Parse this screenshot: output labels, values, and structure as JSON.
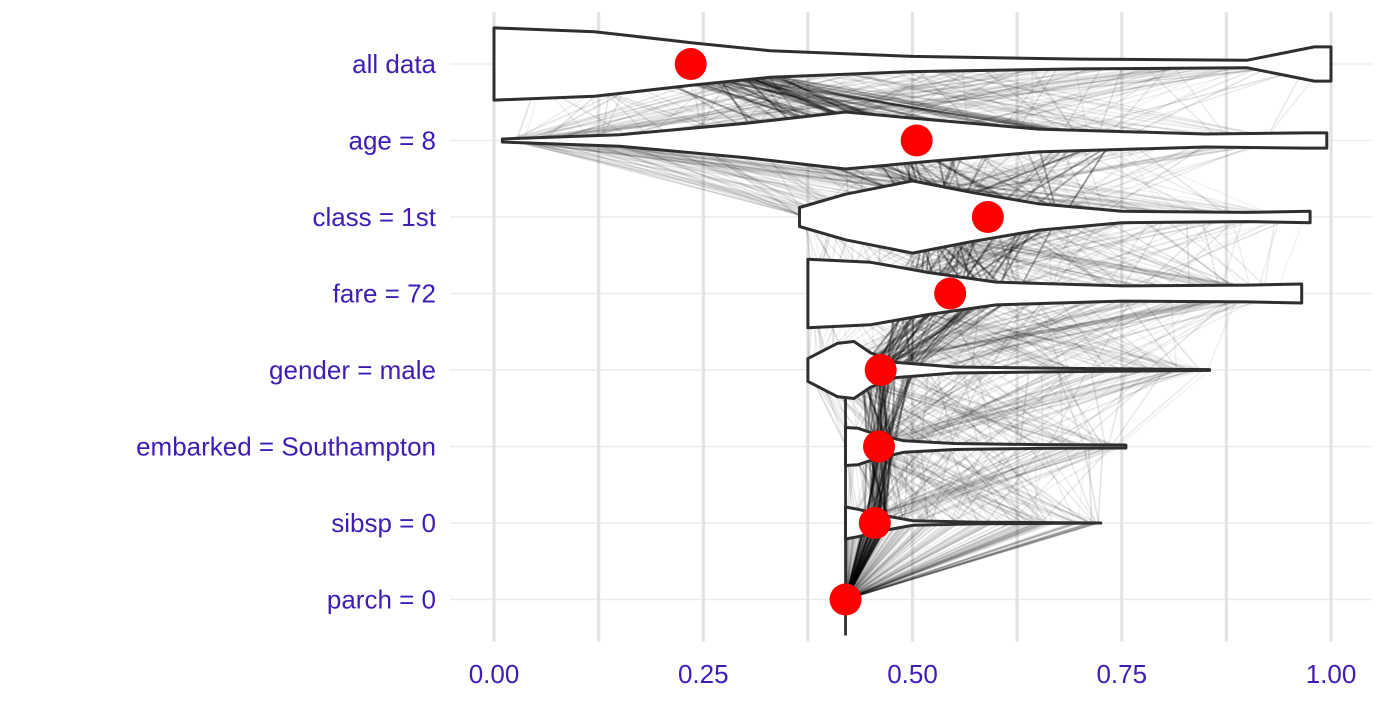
{
  "chart_data": {
    "type": "violin",
    "xlim": [
      0,
      1
    ],
    "x_ticks": [
      0,
      0.25,
      0.5,
      0.75,
      1
    ],
    "x_tick_labels": [
      "0.00",
      "0.25",
      "0.50",
      "0.75",
      "1.00"
    ],
    "grid": true,
    "label_color": "#3f1db5",
    "point_color": "#ff0000",
    "baseline": 0.42,
    "rows": [
      {
        "label": "all data",
        "mean": 0.235,
        "min": 0.0,
        "max": 1.0,
        "profile": [
          [
            0.0,
            0.95
          ],
          [
            0.12,
            0.85
          ],
          [
            0.24,
            0.55
          ],
          [
            0.33,
            0.35
          ],
          [
            0.5,
            0.2
          ],
          [
            0.7,
            0.13
          ],
          [
            0.9,
            0.1
          ],
          [
            0.98,
            0.45
          ],
          [
            1.0,
            0.45
          ]
        ]
      },
      {
        "label": "age = 8",
        "mean": 0.505,
        "min": 0.01,
        "max": 0.995,
        "profile": [
          [
            0.01,
            0.04
          ],
          [
            0.15,
            0.15
          ],
          [
            0.3,
            0.45
          ],
          [
            0.42,
            0.75
          ],
          [
            0.52,
            0.55
          ],
          [
            0.65,
            0.3
          ],
          [
            0.85,
            0.17
          ],
          [
            0.97,
            0.2
          ],
          [
            0.995,
            0.2
          ]
        ]
      },
      {
        "label": "class = 1st",
        "mean": 0.59,
        "min": 0.365,
        "max": 0.975,
        "profile": [
          [
            0.365,
            0.25
          ],
          [
            0.42,
            0.6
          ],
          [
            0.5,
            0.95
          ],
          [
            0.57,
            0.65
          ],
          [
            0.65,
            0.35
          ],
          [
            0.75,
            0.15
          ],
          [
            0.9,
            0.12
          ],
          [
            0.975,
            0.15
          ]
        ]
      },
      {
        "label": "fare = 72",
        "mean": 0.545,
        "min": 0.375,
        "max": 0.965,
        "profile": [
          [
            0.375,
            0.9
          ],
          [
            0.45,
            0.82
          ],
          [
            0.52,
            0.55
          ],
          [
            0.6,
            0.3
          ],
          [
            0.75,
            0.2
          ],
          [
            0.9,
            0.22
          ],
          [
            0.965,
            0.25
          ]
        ]
      },
      {
        "label": "gender = male",
        "mean": 0.462,
        "min": 0.375,
        "max": 0.855,
        "profile": [
          [
            0.375,
            0.3
          ],
          [
            0.41,
            0.7
          ],
          [
            0.43,
            0.75
          ],
          [
            0.45,
            0.45
          ],
          [
            0.48,
            0.2
          ],
          [
            0.55,
            0.08
          ],
          [
            0.7,
            0.04
          ],
          [
            0.855,
            0.01
          ]
        ]
      },
      {
        "label": "embarked = Southampton",
        "mean": 0.46,
        "min": 0.42,
        "max": 0.755,
        "profile": [
          [
            0.42,
            0.5
          ],
          [
            0.435,
            0.48
          ],
          [
            0.455,
            0.33
          ],
          [
            0.49,
            0.15
          ],
          [
            0.55,
            0.08
          ],
          [
            0.65,
            0.05
          ],
          [
            0.755,
            0.04
          ]
        ]
      },
      {
        "label": "sibsp = 0",
        "mean": 0.455,
        "min": 0.42,
        "max": 0.725,
        "profile": [
          [
            0.42,
            0.42
          ],
          [
            0.435,
            0.36
          ],
          [
            0.46,
            0.22
          ],
          [
            0.5,
            0.06
          ],
          [
            0.58,
            0.02
          ],
          [
            0.66,
            0.01
          ],
          [
            0.725,
            0.0
          ]
        ]
      },
      {
        "label": "parch = 0",
        "mean": 0.42,
        "min": 0.42,
        "max": 0.42,
        "profile": []
      }
    ]
  }
}
